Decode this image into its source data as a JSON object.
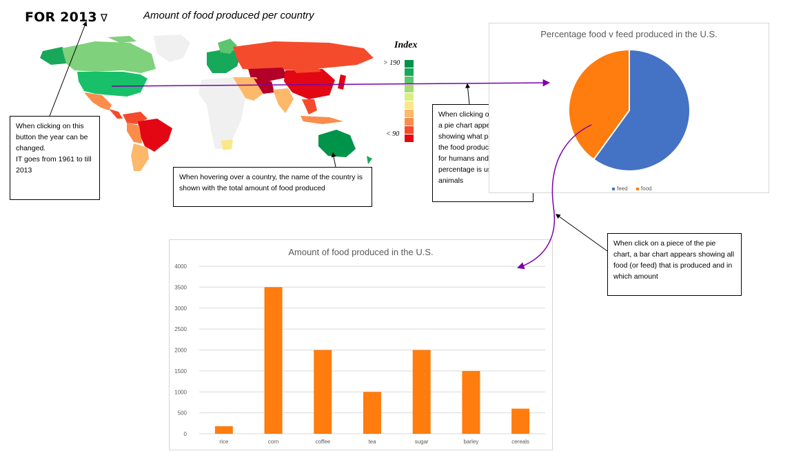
{
  "year_selector": {
    "label": "FOR 2013",
    "icon": "triangle-down-icon"
  },
  "map": {
    "title": "Amount of food produced per country",
    "legend_title": "Index",
    "legend_high": "> 190",
    "legend_low": "< 90",
    "scale_colors": [
      "#00934a",
      "#18a85a",
      "#5cc66e",
      "#a6dc6f",
      "#d9ef84",
      "#fce68a",
      "#fdb86a",
      "#fb8c4c",
      "#f44b2c",
      "#e30613"
    ]
  },
  "notes": {
    "year": "When clicking on this button the year can be changed.\nIT goes from 1961 to till 2013",
    "hover": "When hovering over a country, the name of the country is shown with the total amount of food produced",
    "country_click": "When clicking on a country, a pie chart appears showing what percent of the food produced is used for humans and what percentage is used for animals",
    "pie_click": "When click on a piece of the pie chart, a bar chart appears showing all food (or feed) that is produced and in which amount"
  },
  "chart_data": [
    {
      "type": "pie",
      "title": "Percentage food v feed produced in the U.S.",
      "labels": [
        "feed",
        "food"
      ],
      "values": [
        60,
        40
      ],
      "colors": [
        "#4472c4",
        "#ff7c0e"
      ],
      "legend": "bottom"
    },
    {
      "type": "bar",
      "title": "Amount of food produced in the U.S.",
      "categories": [
        "rice",
        "corn",
        "coffee",
        "tea",
        "sugar",
        "barley",
        "cereals"
      ],
      "values": [
        180,
        3500,
        2000,
        1000,
        2000,
        1500,
        600
      ],
      "ylim": [
        0,
        4000
      ],
      "yticks": [
        "0",
        "500",
        "1000",
        "1500",
        "2000",
        "2500",
        "3000",
        "3500",
        "4000"
      ],
      "grid": true,
      "color": "#ff7c0e"
    }
  ]
}
